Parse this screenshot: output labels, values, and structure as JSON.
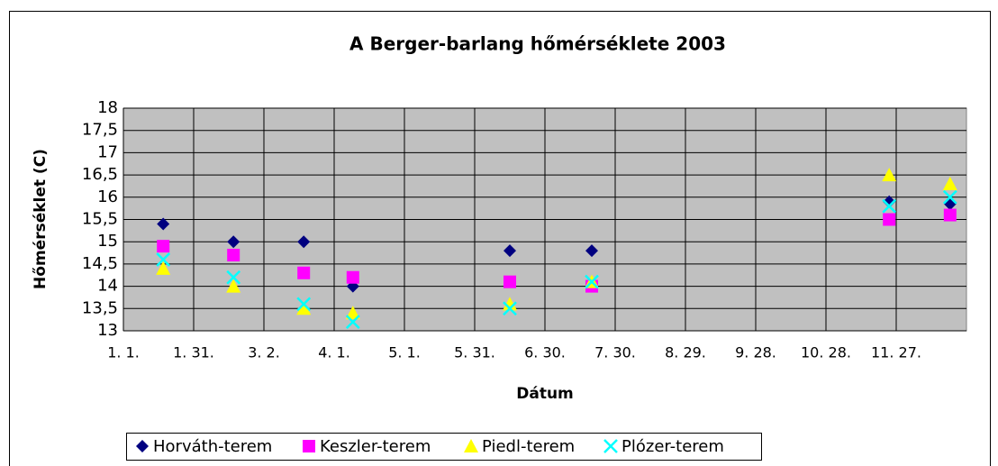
{
  "chart_data": {
    "type": "scatter",
    "title": "A Berger-barlang hőmérséklete 2003",
    "x_label": "Dátum",
    "y_label": "Hőmérséklet (C)",
    "x": [
      18,
      48,
      78,
      99,
      166,
      201,
      328,
      354
    ],
    "series": [
      {
        "name": "Horváth-terem",
        "color": "#000080",
        "marker": "diamond",
        "values": [
          15.4,
          15.0,
          15.0,
          14.0,
          14.8,
          14.8,
          15.9,
          15.85
        ]
      },
      {
        "name": "Keszler-terem",
        "color": "#ff00ff",
        "marker": "square",
        "values": [
          14.9,
          14.7,
          14.3,
          14.2,
          14.1,
          14.0,
          15.5,
          15.6
        ]
      },
      {
        "name": "Piedl-terem",
        "color": "#ffff00",
        "marker": "triangle",
        "values": [
          14.4,
          14.0,
          13.5,
          13.4,
          13.6,
          14.1,
          16.5,
          16.3
        ]
      },
      {
        "name": "Plózer-terem",
        "color": "#00ffff",
        "marker": "x",
        "values": [
          14.6,
          14.2,
          13.6,
          13.2,
          13.5,
          14.1,
          15.8,
          16.0
        ]
      }
    ],
    "xlim": [
      1,
      361
    ],
    "xticks": [
      {
        "value": 1,
        "label": "1. 1."
      },
      {
        "value": 31,
        "label": "1. 31."
      },
      {
        "value": 61,
        "label": "3. 2."
      },
      {
        "value": 91,
        "label": "4. 1."
      },
      {
        "value": 121,
        "label": "5. 1."
      },
      {
        "value": 151,
        "label": "5. 31."
      },
      {
        "value": 181,
        "label": "6. 30."
      },
      {
        "value": 211,
        "label": "7. 30."
      },
      {
        "value": 241,
        "label": "8. 29."
      },
      {
        "value": 271,
        "label": "9. 28."
      },
      {
        "value": 301,
        "label": "10. 28."
      },
      {
        "value": 331,
        "label": "11. 27."
      }
    ],
    "ylim": [
      13,
      18
    ],
    "yticks": [
      13,
      {
        "value": 13.5,
        "label": "13,5"
      },
      14,
      {
        "value": 14.5,
        "label": "14,5"
      },
      15,
      {
        "value": 15.5,
        "label": "15,5"
      },
      16,
      {
        "value": 16.5,
        "label": "16,5"
      },
      17,
      {
        "value": 17.5,
        "label": "17,5"
      },
      18
    ],
    "grid": true,
    "legend": "bottom"
  }
}
